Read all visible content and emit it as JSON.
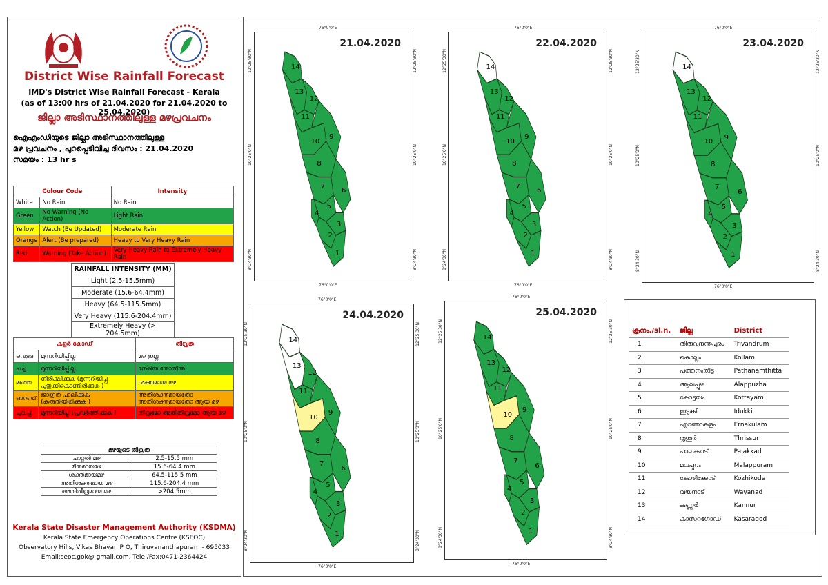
{
  "header": {
    "title": "District Wise Rainfall Forecast",
    "subtitle": "IMD's District Wise Rainfall Forecast - Kerala",
    "issued": "(as of 13:00 hrs of 21.04.2020  for 21.04.2020  to 25.04.2020)",
    "ml_title": "ജില്ലാ അടിസ്ഥാനത്തിലുള്ള മഴപ്രവചനം",
    "ml_line1": "ഐഎംഡിയുടെ ജില്ലാ     അടിസ്ഥാനത്തിലുള്ള",
    "ml_line2": "മഴ പ്രവചനം , പുറപ്പെടിവിച്ച       ദിവസം : 21.04.2020",
    "ml_line3": "സമയം : 13   hr s"
  },
  "colour_code": {
    "head_code": "Colour Code",
    "head_intensity": "Intensity",
    "rows": [
      {
        "color": "White",
        "code": "No Rain",
        "intensity": "No Rain",
        "bg": "#ffffff"
      },
      {
        "color": "Green",
        "code": "No Warning (No Action)",
        "intensity": "Light Rain",
        "bg": "#22a34a"
      },
      {
        "color": "Yellow",
        "code": "Watch (Be Updated)",
        "intensity": "Moderate Rain",
        "bg": "#ffff00"
      },
      {
        "color": "Orange",
        "code": "Alert (Be prepared)",
        "intensity": "Heavy to Very Heavy Rain",
        "bg": "#f7a500"
      },
      {
        "color": "Red",
        "code": "Warning (Take Action)",
        "intensity": "Very Heavy Rain to Extremely Heavy Rain",
        "bg": "#ff0000"
      }
    ]
  },
  "rainfall_intensity": {
    "head": "RAINFALL INTENSITY (MM)",
    "rows": [
      "Light (2.5-15.5mm)",
      "Moderate (15.6-64.4mm)",
      "Heavy (64.5-115.5mm)",
      "Very Heavy (115.6-204.4mm)",
      "Extremely Heavy (> 204.5mm)"
    ]
  },
  "ml_colour_code": {
    "head_code": "കളർ കോഡ്",
    "head_intensity": "തീവ്രത",
    "rows": [
      {
        "color": "വെള്ള",
        "code": "മുന്നറിയിപ്പില്ല",
        "intensity": "മഴ ഇല്ല",
        "bg": "#ffffff"
      },
      {
        "color": "പച്ച",
        "code": "മുന്നറിയിപ്പില്ല",
        "intensity": "നേരിയ തോതിൽ",
        "bg": "#22a34a"
      },
      {
        "color": "മഞ്ഞ",
        "code": "നിരീക്ഷിക്കുക (മുന്നറിയിപ്പ് പുതുക്കികൊണ്ടിരിക്കുക )",
        "intensity": "ശക്തമായ മഴ",
        "bg": "#ffff00"
      },
      {
        "color": "ഓറഞ്ച്",
        "code": "ജാഗ്രത പാലിക്കുക (കരുതിയിരിക്കുക )",
        "intensity": "അതിശക്തമായതോ അതിശക്തമായതോ ആയ മഴ",
        "bg": "#f7a500"
      },
      {
        "color": "ചുവപ്പ്",
        "code": "മുന്നറിയിപ്പ് (പ്രവർത്തിക്കുക )",
        "intensity": "തീവ്രമോ അതിതീവ്രമോ ആയ മഴ",
        "bg": "#ff0000"
      }
    ]
  },
  "ml_intensity": {
    "head": "മഴയുടെ തീവ്രത",
    "rows": [
      {
        "label": "ചാറ്റൽ മഴ",
        "range": "2.5-15.5 mm"
      },
      {
        "label": "മിതമായമഴ",
        "range": "15.6-64.4 mm"
      },
      {
        "label": "ശക്തമായമഴ",
        "range": "64.5-115.5 mm"
      },
      {
        "label": "അതിശക്തമായ മഴ",
        "range": "115.6-204.4 mm"
      },
      {
        "label": "അതിതീവ്രമായ മഴ",
        "range": ">204.5mm"
      }
    ]
  },
  "footer": {
    "org": "Kerala State Disaster Management Authority (KSDMA)",
    "line1": "Kerala State Emergency Operations Centre (KSEOC)",
    "line2": "Observatory Hills, Vikas Bhavan P O, Thiruvananthapuram - 695033",
    "line3": "Email:seoc.gok@ gmail.com, Tele /Fax:0471-2364424"
  },
  "coords": {
    "lon": "76°0'0\"E",
    "lat_top": "12°25'30\"N",
    "lat_mid": "10°25'0\"N",
    "lat_bot": "8°24'30\"N"
  },
  "maps": [
    {
      "date": "21.04.2020",
      "colors": {
        "14": "#22a34a",
        "13": "#22a34a",
        "10": "#22a34a"
      }
    },
    {
      "date": "22.04.2020",
      "colors": {
        "14": "#ffffff",
        "13": "#22a34a",
        "10": "#22a34a"
      }
    },
    {
      "date": "23.04.2020",
      "colors": {
        "14": "#ffffff",
        "13": "#22a34a",
        "10": "#22a34a"
      }
    },
    {
      "date": "24.04.2020",
      "colors": {
        "14": "#ffffff",
        "13": "#ffffff",
        "10": "#fff59a"
      }
    },
    {
      "date": "25.04.2020",
      "colors": {
        "14": "#22a34a",
        "13": "#22a34a",
        "10": "#fff59a"
      }
    }
  ],
  "districts": {
    "head_no": "ക്രനം./sl.n.",
    "head_ml": "ജില്ല",
    "head_en": "District",
    "rows": [
      {
        "n": "1",
        "ml": "തിരുവനന്തപുരം",
        "en": "Trivandrum"
      },
      {
        "n": "2",
        "ml": "കൊല്ലം",
        "en": "Kollam"
      },
      {
        "n": "3",
        "ml": "പത്തനംതിട്ട",
        "en": "Pathanamthitta"
      },
      {
        "n": "4",
        "ml": "ആലപ്പുഴ",
        "en": "Alappuzha"
      },
      {
        "n": "5",
        "ml": "കോട്ടയം",
        "en": "Kottayam"
      },
      {
        "n": "6",
        "ml": "ഇടുക്കി",
        "en": "Idukki"
      },
      {
        "n": "7",
        "ml": "എറണാകുളം",
        "en": "Ernakulam"
      },
      {
        "n": "8",
        "ml": "തൃശൂർ",
        "en": "Thrissur"
      },
      {
        "n": "9",
        "ml": "പാലക്കാട്",
        "en": "Palakkad"
      },
      {
        "n": "10",
        "ml": "മലപ്പുറം",
        "en": "Malappuram"
      },
      {
        "n": "11",
        "ml": "കോഴിക്കോട്",
        "en": "Kozhikode"
      },
      {
        "n": "12",
        "ml": "വയനാട്",
        "en": "Wayanad"
      },
      {
        "n": "13",
        "ml": "കണ്ണൂർ",
        "en": "Kannur"
      },
      {
        "n": "14",
        "ml": "കാസറഗോഡ്",
        "en": "Kasaragod"
      }
    ]
  }
}
